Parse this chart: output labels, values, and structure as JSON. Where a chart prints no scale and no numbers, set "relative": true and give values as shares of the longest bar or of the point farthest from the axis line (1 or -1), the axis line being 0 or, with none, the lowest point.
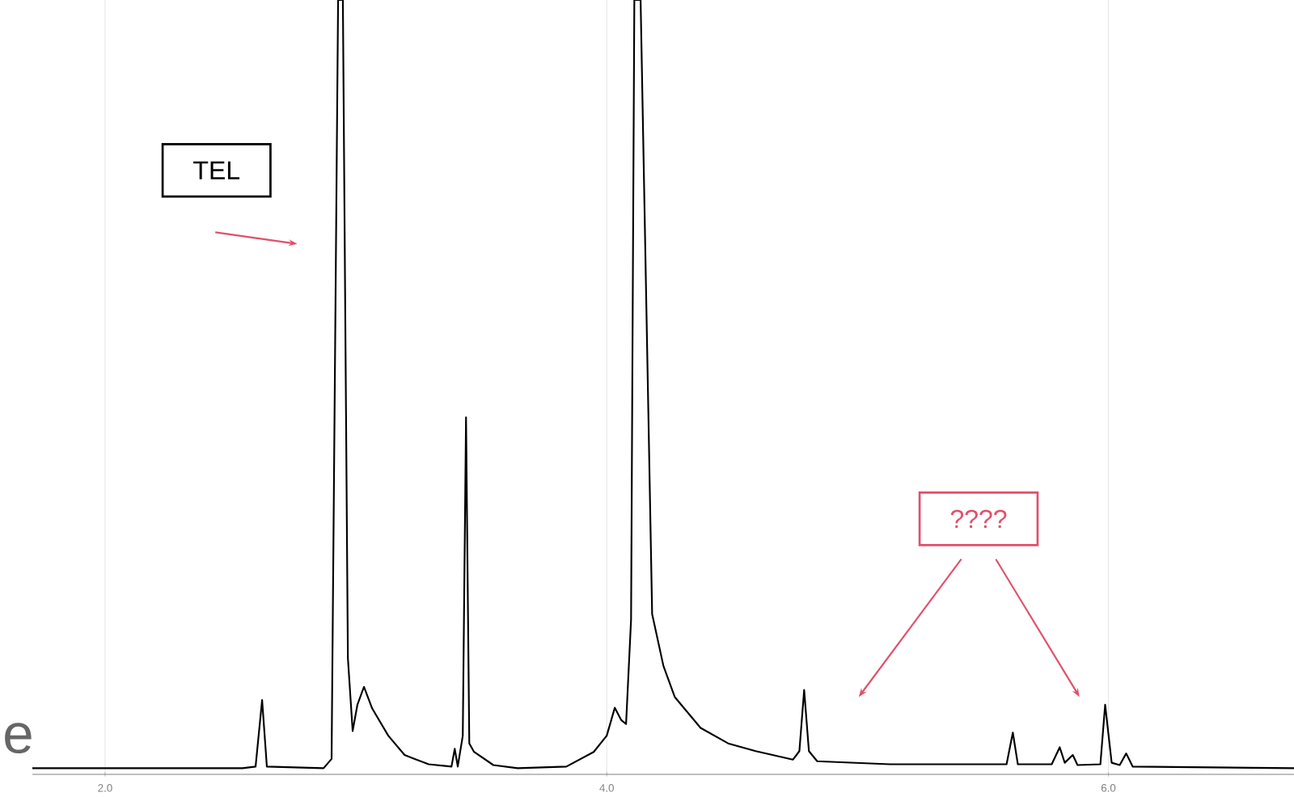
{
  "chart_data": {
    "type": "line",
    "relative": true,
    "grid": "x",
    "marker": "none",
    "line_style": "solid",
    "xlim": [
      1.71,
      6.74
    ],
    "xticks": [
      {
        "value": 2,
        "label": "2.0"
      },
      {
        "value": 4,
        "label": "4.0"
      },
      {
        "value": 6,
        "label": "6.0"
      }
    ],
    "series": [
      {
        "color": "#000000",
        "x": [
          1.71,
          2.548,
          2.6,
          2.626,
          2.645,
          2.871,
          2.903,
          2.929,
          2.948,
          2.968,
          2.987,
          3.006,
          3.032,
          3.065,
          3.129,
          3.194,
          3.29,
          3.381,
          3.394,
          3.406,
          3.426,
          3.439,
          3.452,
          3.471,
          3.548,
          3.645,
          3.839,
          3.948,
          4.0,
          4.032,
          4.058,
          4.077,
          4.097,
          4.11,
          4.135,
          4.181,
          4.226,
          4.271,
          4.374,
          4.484,
          4.594,
          4.742,
          4.768,
          4.787,
          4.806,
          4.839,
          5.129,
          5.452,
          5.594,
          5.619,
          5.639,
          5.774,
          5.806,
          5.826,
          5.858,
          5.877,
          5.968,
          5.987,
          6.013,
          6.045,
          6.071,
          6.097,
          6.419,
          6.74
        ],
        "values": [
          0.008,
          0.008,
          0.01,
          0.096,
          0.01,
          0.008,
          0.02,
          1.0,
          1.0,
          0.15,
          0.056,
          0.09,
          0.113,
          0.085,
          0.05,
          0.025,
          0.013,
          0.01,
          0.033,
          0.01,
          0.05,
          0.461,
          0.04,
          0.029,
          0.012,
          0.008,
          0.01,
          0.029,
          0.05,
          0.086,
          0.07,
          0.065,
          0.2,
          1.0,
          1.0,
          0.207,
          0.14,
          0.1,
          0.06,
          0.04,
          0.03,
          0.019,
          0.03,
          0.109,
          0.03,
          0.017,
          0.013,
          0.013,
          0.013,
          0.054,
          0.013,
          0.013,
          0.035,
          0.015,
          0.025,
          0.012,
          0.013,
          0.09,
          0.015,
          0.012,
          0.027,
          0.01,
          0.009,
          0.008
        ]
      }
    ],
    "annotations": [
      "TEL",
      "????",
      "e"
    ]
  }
}
